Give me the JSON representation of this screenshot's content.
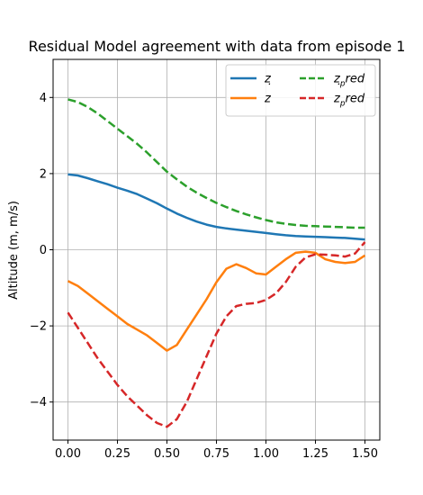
{
  "chart_data": {
    "type": "line",
    "title": "Residual Model agreement with data from episode 1",
    "xlabel": "",
    "ylabel": "Altitude (m, m/s)",
    "xlim": [
      -0.075,
      1.575
    ],
    "ylim": [
      -5.0,
      5.0
    ],
    "xticks": [
      0.0,
      0.25,
      0.5,
      0.75,
      1.0,
      1.25,
      1.5
    ],
    "xtick_labels": [
      "0.00",
      "0.25",
      "0.50",
      "0.75",
      "1.00",
      "1.25",
      "1.50"
    ],
    "yticks": [
      -4,
      -2,
      0,
      2,
      4
    ],
    "ytick_labels": [
      "−4",
      "−2",
      "0",
      "2",
      "4"
    ],
    "grid": true,
    "legend_position": "upper-right",
    "legend_columns": 2,
    "x": [
      0.0,
      0.05,
      0.1,
      0.15,
      0.2,
      0.25,
      0.3,
      0.35,
      0.4,
      0.45,
      0.5,
      0.55,
      0.6,
      0.65,
      0.7,
      0.75,
      0.8,
      0.85,
      0.9,
      0.95,
      1.0,
      1.05,
      1.1,
      1.15,
      1.2,
      1.25,
      1.3,
      1.35,
      1.4,
      1.45,
      1.5
    ],
    "series": [
      {
        "name": "z",
        "color": "#1f77b4",
        "dash": "solid",
        "values": [
          1.98,
          1.95,
          1.88,
          1.8,
          1.72,
          1.63,
          1.55,
          1.46,
          1.34,
          1.22,
          1.08,
          0.95,
          0.84,
          0.74,
          0.66,
          0.6,
          0.56,
          0.53,
          0.5,
          0.47,
          0.44,
          0.41,
          0.38,
          0.36,
          0.35,
          0.34,
          0.33,
          0.32,
          0.31,
          0.29,
          0.27
        ]
      },
      {
        "name": "ż",
        "color": "#ff7f0e",
        "dash": "solid",
        "values": [
          -0.82,
          -0.95,
          -1.15,
          -1.35,
          -1.55,
          -1.75,
          -1.95,
          -2.1,
          -2.25,
          -2.45,
          -2.65,
          -2.5,
          -2.1,
          -1.7,
          -1.3,
          -0.85,
          -0.5,
          -0.38,
          -0.48,
          -0.62,
          -0.65,
          -0.45,
          -0.25,
          -0.08,
          -0.05,
          -0.08,
          -0.25,
          -0.32,
          -0.35,
          -0.32,
          -0.15
        ]
      },
      {
        "name": "ż_p red",
        "color": "#2ca02c",
        "dash": "dashed",
        "values": [
          3.95,
          3.88,
          3.75,
          3.58,
          3.38,
          3.18,
          2.98,
          2.78,
          2.55,
          2.3,
          2.05,
          1.85,
          1.66,
          1.5,
          1.36,
          1.23,
          1.12,
          1.02,
          0.93,
          0.85,
          0.78,
          0.72,
          0.68,
          0.65,
          0.63,
          0.62,
          0.61,
          0.6,
          0.59,
          0.58,
          0.58
        ]
      },
      {
        "name": "ż_p red dot",
        "color": "#d62728",
        "dash": "dashed",
        "values": [
          -1.65,
          -2.05,
          -2.45,
          -2.85,
          -3.2,
          -3.55,
          -3.85,
          -4.1,
          -4.35,
          -4.55,
          -4.65,
          -4.45,
          -4.0,
          -3.4,
          -2.8,
          -2.2,
          -1.75,
          -1.48,
          -1.42,
          -1.4,
          -1.32,
          -1.15,
          -0.85,
          -0.45,
          -0.2,
          -0.12,
          -0.13,
          -0.15,
          -0.18,
          -0.1,
          0.2
        ]
      }
    ]
  },
  "legend": {
    "entries": [
      {
        "main": "z",
        "dot": false,
        "sub": "",
        "after": ""
      },
      {
        "main": "z",
        "dot": true,
        "sub": "",
        "after": ""
      },
      {
        "main": "z",
        "dot": false,
        "sub": "p",
        "after": "red"
      },
      {
        "main": "z",
        "dot": true,
        "sub": "p",
        "after": "red"
      }
    ]
  }
}
